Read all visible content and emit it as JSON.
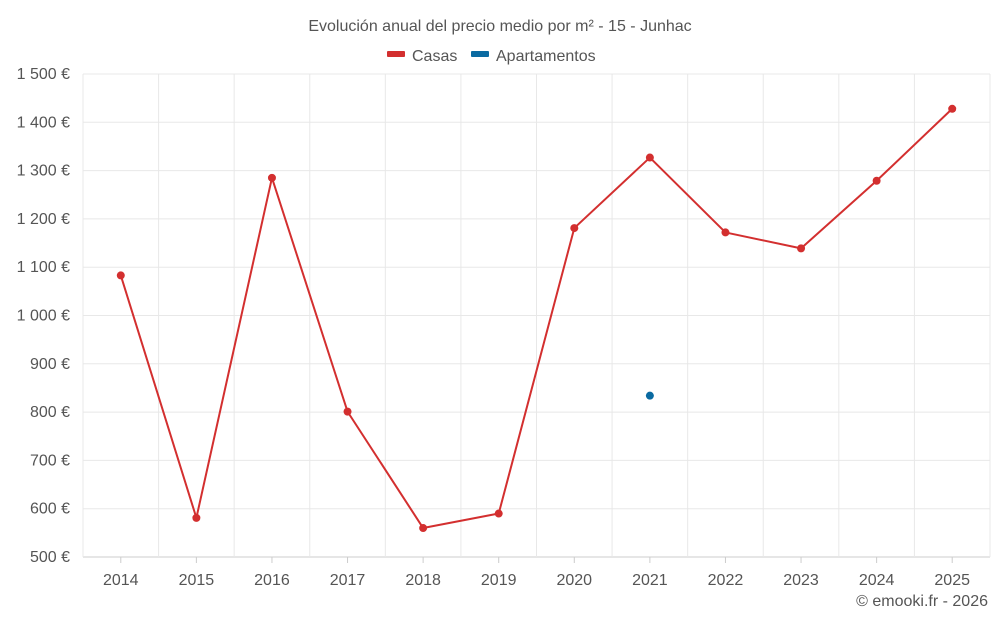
{
  "colors": {
    "casas": "#d32f2f",
    "apartamentos": "#0a6aa1"
  },
  "credit": "© emooki.fr - 2026",
  "chart_data": {
    "type": "line",
    "title": "Evolución anual del precio medio por m² - 15 - Junhac",
    "categories": [
      "2014",
      "2015",
      "2016",
      "2017",
      "2018",
      "2019",
      "2020",
      "2021",
      "2022",
      "2023",
      "2024",
      "2025"
    ],
    "series": [
      {
        "name": "Casas",
        "values": [
          1083,
          581,
          1285,
          801,
          560,
          590,
          1181,
          1327,
          1172,
          1139,
          1279,
          1428
        ]
      },
      {
        "name": "Apartamentos",
        "values": [
          null,
          null,
          null,
          null,
          null,
          null,
          null,
          834,
          null,
          null,
          null,
          null
        ]
      }
    ],
    "yticks": [
      "500 €",
      "600 €",
      "700 €",
      "800 €",
      "900 €",
      "1 000 €",
      "1 100 €",
      "1 200 €",
      "1 300 €",
      "1 400 €",
      "1 500 €"
    ],
    "ylim": [
      500,
      1500
    ],
    "xlabel": "",
    "ylabel": "",
    "legend_position": "top-center",
    "grid": true
  }
}
